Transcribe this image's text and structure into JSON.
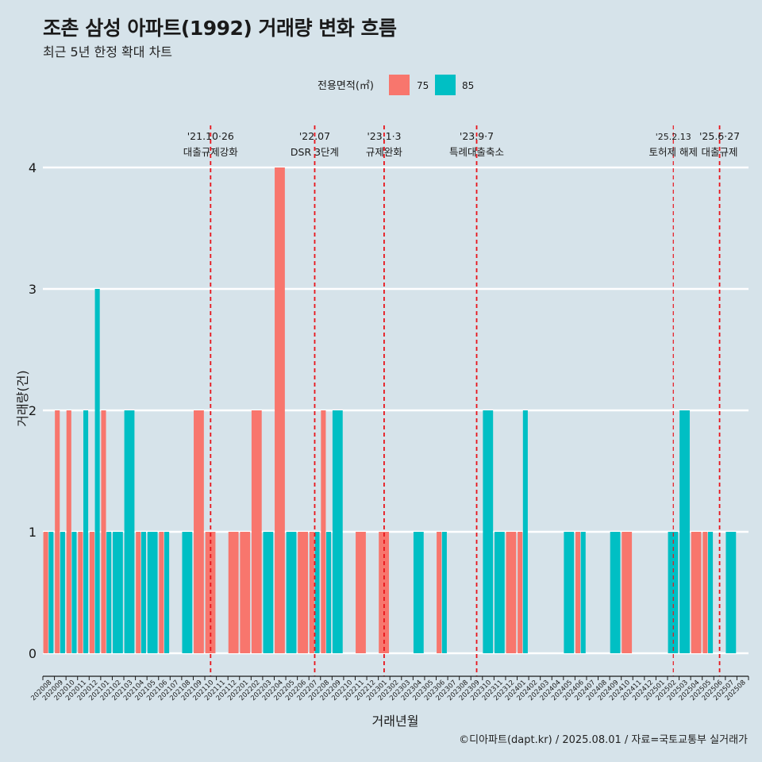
{
  "chart_data": {
    "type": "bar",
    "title": "조촌 삼성 아파트(1992) 거래량 변화 흐름",
    "subtitle": "최근 5년 한정 확대 차트",
    "xlabel": "거래년월",
    "ylabel": "거래량(건)",
    "caption": "©디아파트(dapt.kr) / 2025.08.01 / 자료=국토교통부 실거래가",
    "legend": {
      "title": "전용면적(㎡)",
      "position": "top",
      "entries": [
        {
          "label": "75",
          "color": "#f8766d"
        },
        {
          "label": "85",
          "color": "#00bfc4"
        }
      ]
    },
    "ylim": [
      0,
      4
    ],
    "yticks": [
      "0",
      "1",
      "2",
      "3",
      "4"
    ],
    "grid": "horizontal",
    "categories": [
      "202008",
      "202009",
      "202010",
      "202011",
      "202012",
      "202101",
      "202102",
      "202103",
      "202104",
      "202105",
      "202106",
      "202107",
      "202108",
      "202109",
      "202110",
      "202111",
      "202112",
      "202201",
      "202202",
      "202203",
      "202204",
      "202205",
      "202206",
      "202207",
      "202208",
      "202209",
      "202210",
      "202211",
      "202212",
      "202301",
      "202302",
      "202303",
      "202304",
      "202305",
      "202306",
      "202307",
      "202308",
      "202309",
      "202310",
      "202311",
      "202312",
      "202401",
      "202402",
      "202403",
      "202404",
      "202405",
      "202406",
      "202407",
      "202408",
      "202409",
      "202410",
      "202411",
      "202412",
      "202501",
      "202502",
      "202503",
      "202504",
      "202505",
      "202506",
      "202507",
      "202508"
    ],
    "series": [
      {
        "name": "75",
        "color": "#f8766d",
        "values": [
          1,
          2,
          2,
          1,
          1,
          2,
          0,
          0,
          1,
          0,
          1,
          0,
          0,
          2,
          1,
          0,
          1,
          1,
          2,
          0,
          4,
          0,
          1,
          1,
          2,
          0,
          0,
          1,
          0,
          1,
          0,
          0,
          0,
          0,
          1,
          0,
          0,
          0,
          0,
          0,
          1,
          1,
          0,
          0,
          0,
          0,
          1,
          0,
          0,
          0,
          1,
          0,
          0,
          0,
          0,
          0,
          1,
          1,
          0,
          0,
          0
        ]
      },
      {
        "name": "85",
        "color": "#00bfc4",
        "values": [
          1,
          1,
          1,
          2,
          3,
          1,
          1,
          2,
          1,
          1,
          1,
          0,
          1,
          0,
          0,
          0,
          0,
          0,
          0,
          1,
          0,
          1,
          0,
          1,
          1,
          2,
          0,
          0,
          0,
          0,
          0,
          0,
          1,
          0,
          1,
          0,
          0,
          0,
          2,
          1,
          0,
          2,
          0,
          0,
          0,
          1,
          1,
          0,
          0,
          1,
          0,
          0,
          0,
          0,
          1,
          2,
          0,
          1,
          0,
          1,
          0
        ]
      }
    ],
    "annotations": [
      {
        "category": "202110",
        "date": "'21.10·26",
        "label": "대출규제강화",
        "style": "thick"
      },
      {
        "category": "202207",
        "date": "'22.07",
        "label": "DSR 3단계",
        "style": "thick"
      },
      {
        "category": "202301",
        "date": "'23.1·3",
        "label": "규제완화",
        "style": "thick"
      },
      {
        "category": "202309",
        "date": "'23.9·7",
        "label": "특례대출축소",
        "style": "thick"
      },
      {
        "category": "202502",
        "date": "'25.2.13",
        "label": "토허제 해제",
        "style": "thin"
      },
      {
        "category": "202506",
        "date": "'25.6·27",
        "label": "대출규제",
        "style": "thick"
      }
    ]
  }
}
